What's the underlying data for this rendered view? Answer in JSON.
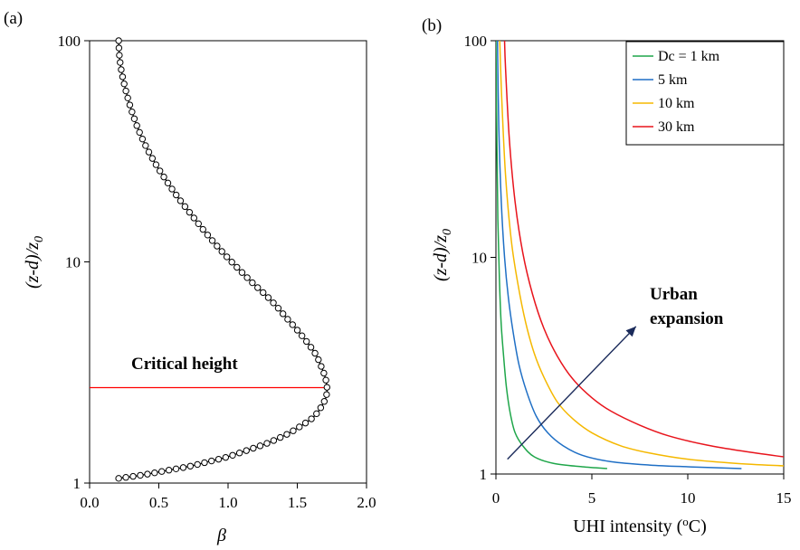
{
  "chart_data": [
    {
      "panel_label": "(a)",
      "type": "line",
      "xlabel": "β",
      "ylabel": "(z-d)/z0",
      "xlim": [
        0,
        2
      ],
      "ylim": [
        1,
        100
      ],
      "y_scale": "log",
      "x_ticks": [
        "0.0",
        "0.5",
        "1.0",
        "1.5",
        "2.0"
      ],
      "y_ticks": [
        "1",
        "10",
        "100"
      ],
      "series": [
        {
          "markers": "open-circle",
          "color": "#000000",
          "points": [
            [
              0.21,
              1.05
            ],
            [
              0.39,
              1.09
            ],
            [
              0.56,
              1.14
            ],
            [
              0.72,
              1.19
            ],
            [
              0.86,
              1.25
            ],
            [
              0.99,
              1.31
            ],
            [
              1.1,
              1.38
            ],
            [
              1.2,
              1.45
            ],
            [
              1.29,
              1.52
            ],
            [
              1.37,
              1.6
            ],
            [
              1.44,
              1.68
            ],
            [
              1.5,
              1.77
            ],
            [
              1.56,
              1.87
            ],
            [
              1.61,
              1.97
            ],
            [
              1.65,
              2.1
            ],
            [
              1.68,
              2.25
            ],
            [
              1.705,
              2.42
            ],
            [
              1.715,
              2.62
            ],
            [
              1.71,
              2.85
            ],
            [
              1.695,
              3.1
            ],
            [
              1.67,
              3.4
            ],
            [
              1.64,
              3.75
            ],
            [
              1.6,
              4.1
            ],
            [
              1.55,
              4.5
            ],
            [
              1.49,
              5.0
            ],
            [
              1.42,
              5.6
            ],
            [
              1.35,
              6.3
            ],
            [
              1.27,
              7.1
            ],
            [
              1.18,
              8.0
            ],
            [
              1.09,
              9.1
            ],
            [
              1.0,
              10.4
            ],
            [
              0.91,
              12.0
            ],
            [
              0.82,
              14.0
            ],
            [
              0.73,
              16.5
            ],
            [
              0.64,
              19.5
            ],
            [
              0.56,
              23.0
            ],
            [
              0.48,
              27.5
            ],
            [
              0.41,
              33.0
            ],
            [
              0.35,
              40.0
            ],
            [
              0.3,
              49.0
            ],
            [
              0.26,
              60.0
            ],
            [
              0.23,
              73.0
            ],
            [
              0.215,
              86.0
            ],
            [
              0.21,
              100.0
            ]
          ]
        }
      ],
      "reference_line": {
        "y": 2.7,
        "color": "#ff0000"
      },
      "annotations": [
        {
          "text": "Critical height"
        }
      ]
    },
    {
      "panel_label": "(b)",
      "type": "line",
      "xlabel": "UHI intensity (oC)",
      "ylabel": "(z-d)/z0",
      "xlim": [
        0,
        15
      ],
      "ylim": [
        1,
        100
      ],
      "y_scale": "log",
      "x_ticks": [
        "0",
        "5",
        "10",
        "15"
      ],
      "y_ticks": [
        "1",
        "10",
        "100"
      ],
      "legend_position": "top-right",
      "series": [
        {
          "name": "Dc = 1 km",
          "color": "#1fa64a",
          "points": [
            [
              5.8,
              1.06
            ],
            [
              4.5,
              1.08
            ],
            [
              3.0,
              1.12
            ],
            [
              2.0,
              1.2
            ],
            [
              1.4,
              1.35
            ],
            [
              1.0,
              1.55
            ],
            [
              0.75,
              1.9
            ],
            [
              0.55,
              2.5
            ],
            [
              0.4,
              3.5
            ],
            [
              0.27,
              5.0
            ],
            [
              0.18,
              8.0
            ],
            [
              0.1,
              15.0
            ],
            [
              0.05,
              35.0
            ],
            [
              0.0,
              100.0
            ]
          ]
        },
        {
          "name": "5 km",
          "color": "#1f6fc5",
          "points": [
            [
              12.8,
              1.06
            ],
            [
              10.0,
              1.08
            ],
            [
              8.0,
              1.1
            ],
            [
              6.0,
              1.14
            ],
            [
              4.5,
              1.22
            ],
            [
              3.5,
              1.35
            ],
            [
              2.7,
              1.55
            ],
            [
              2.1,
              1.85
            ],
            [
              1.6,
              2.4
            ],
            [
              1.2,
              3.2
            ],
            [
              0.9,
              4.5
            ],
            [
              0.65,
              6.5
            ],
            [
              0.45,
              10.0
            ],
            [
              0.28,
              18.0
            ],
            [
              0.15,
              40.0
            ],
            [
              0.08,
              100.0
            ]
          ]
        },
        {
          "name": "10 km",
          "color": "#f5b800",
          "points": [
            [
              15.0,
              1.09
            ],
            [
              12.5,
              1.12
            ],
            [
              10.0,
              1.17
            ],
            [
              8.0,
              1.25
            ],
            [
              6.5,
              1.35
            ],
            [
              5.0,
              1.55
            ],
            [
              4.0,
              1.8
            ],
            [
              3.2,
              2.15
            ],
            [
              2.5,
              2.8
            ],
            [
              2.0,
              3.6
            ],
            [
              1.55,
              5.0
            ],
            [
              1.15,
              7.5
            ],
            [
              0.8,
              12.0
            ],
            [
              0.5,
              24.0
            ],
            [
              0.3,
              55.0
            ],
            [
              0.2,
              100.0
            ]
          ]
        },
        {
          "name": "30 km",
          "color": "#e8141c",
          "points": [
            [
              15.0,
              1.2
            ],
            [
              13.0,
              1.27
            ],
            [
              11.0,
              1.36
            ],
            [
              9.0,
              1.5
            ],
            [
              7.5,
              1.68
            ],
            [
              6.0,
              1.95
            ],
            [
              5.0,
              2.25
            ],
            [
              4.0,
              2.75
            ],
            [
              3.2,
              3.5
            ],
            [
              2.5,
              4.7
            ],
            [
              1.9,
              6.8
            ],
            [
              1.4,
              10.5
            ],
            [
              1.0,
              18.0
            ],
            [
              0.7,
              35.0
            ],
            [
              0.5,
              75.0
            ],
            [
              0.45,
              100.0
            ]
          ]
        }
      ],
      "annotations": [
        {
          "text_line1": "Urban",
          "text_line2": "expansion"
        }
      ],
      "arrow": {
        "from": [
          0.6,
          1.17
        ],
        "to": [
          7.3,
          4.8
        ],
        "color": "#1a2a5a"
      }
    }
  ]
}
